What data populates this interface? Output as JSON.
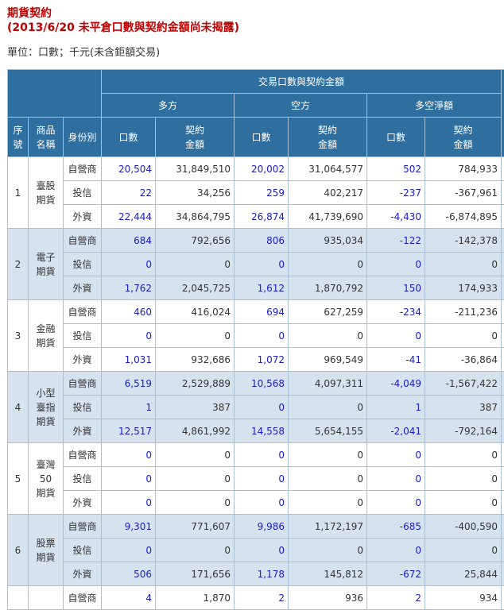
{
  "title": "期貨契約",
  "subtitle": "(2013/6/20 未平倉口數與契約金額尚未揭露)",
  "unit_text": "單位：口數；千元(未含鉅額交易)",
  "header": {
    "group": "交易口數與契約金額",
    "long": "多方",
    "short": "空方",
    "net": "多空淨額",
    "seq": [
      "序",
      "號"
    ],
    "product": [
      "商品",
      "名稱"
    ],
    "identity": "身份別",
    "lots": "口數",
    "amount": [
      "契約",
      "金額"
    ]
  },
  "groups": [
    {
      "seq": "1",
      "name": [
        "臺股",
        "期貨"
      ],
      "rows": [
        {
          "identity": "自營商",
          "long_lots": "20,504",
          "long_amt": "31,849,510",
          "short_lots": "20,002",
          "short_amt": "31,064,577",
          "net_lots": "502",
          "net_amt": "784,933"
        },
        {
          "identity": "投信",
          "long_lots": "22",
          "long_amt": "34,256",
          "short_lots": "259",
          "short_amt": "402,217",
          "net_lots": "-237",
          "net_amt": "-367,961"
        },
        {
          "identity": "外資",
          "long_lots": "22,444",
          "long_amt": "34,864,795",
          "short_lots": "26,874",
          "short_amt": "41,739,690",
          "net_lots": "-4,430",
          "net_amt": "-6,874,895"
        }
      ]
    },
    {
      "seq": "2",
      "name": [
        "電子",
        "期貨"
      ],
      "rows": [
        {
          "identity": "自營商",
          "long_lots": "684",
          "long_amt": "792,656",
          "short_lots": "806",
          "short_amt": "935,034",
          "net_lots": "-122",
          "net_amt": "-142,378"
        },
        {
          "identity": "投信",
          "long_lots": "0",
          "long_amt": "0",
          "short_lots": "0",
          "short_amt": "0",
          "net_lots": "0",
          "net_amt": "0"
        },
        {
          "identity": "外資",
          "long_lots": "1,762",
          "long_amt": "2,045,725",
          "short_lots": "1,612",
          "short_amt": "1,870,792",
          "net_lots": "150",
          "net_amt": "174,933"
        }
      ]
    },
    {
      "seq": "3",
      "name": [
        "金融",
        "期貨"
      ],
      "rows": [
        {
          "identity": "自營商",
          "long_lots": "460",
          "long_amt": "416,024",
          "short_lots": "694",
          "short_amt": "627,259",
          "net_lots": "-234",
          "net_amt": "-211,236"
        },
        {
          "identity": "投信",
          "long_lots": "0",
          "long_amt": "0",
          "short_lots": "0",
          "short_amt": "0",
          "net_lots": "0",
          "net_amt": "0"
        },
        {
          "identity": "外資",
          "long_lots": "1,031",
          "long_amt": "932,686",
          "short_lots": "1,072",
          "short_amt": "969,549",
          "net_lots": "-41",
          "net_amt": "-36,864"
        }
      ]
    },
    {
      "seq": "4",
      "name": [
        "小型",
        "臺指",
        "期貨"
      ],
      "rows": [
        {
          "identity": "自營商",
          "long_lots": "6,519",
          "long_amt": "2,529,889",
          "short_lots": "10,568",
          "short_amt": "4,097,311",
          "net_lots": "-4,049",
          "net_amt": "-1,567,422"
        },
        {
          "identity": "投信",
          "long_lots": "1",
          "long_amt": "387",
          "short_lots": "0",
          "short_amt": "0",
          "net_lots": "1",
          "net_amt": "387"
        },
        {
          "identity": "外資",
          "long_lots": "12,517",
          "long_amt": "4,861,992",
          "short_lots": "14,558",
          "short_amt": "5,654,155",
          "net_lots": "-2,041",
          "net_amt": "-792,164"
        }
      ]
    },
    {
      "seq": "5",
      "name": [
        "臺灣",
        "50",
        "期貨"
      ],
      "rows": [
        {
          "identity": "自營商",
          "long_lots": "0",
          "long_amt": "0",
          "short_lots": "0",
          "short_amt": "0",
          "net_lots": "0",
          "net_amt": "0"
        },
        {
          "identity": "投信",
          "long_lots": "0",
          "long_amt": "0",
          "short_lots": "0",
          "short_amt": "0",
          "net_lots": "0",
          "net_amt": "0"
        },
        {
          "identity": "外資",
          "long_lots": "0",
          "long_amt": "0",
          "short_lots": "0",
          "short_amt": "0",
          "net_lots": "0",
          "net_amt": "0"
        }
      ]
    },
    {
      "seq": "6",
      "name": [
        "股票",
        "期貨"
      ],
      "rows": [
        {
          "identity": "自營商",
          "long_lots": "9,301",
          "long_amt": "771,607",
          "short_lots": "9,986",
          "short_amt": "1,172,197",
          "net_lots": "-685",
          "net_amt": "-400,590"
        },
        {
          "identity": "投信",
          "long_lots": "0",
          "long_amt": "0",
          "short_lots": "0",
          "short_amt": "0",
          "net_lots": "0",
          "net_amt": "0"
        },
        {
          "identity": "外資",
          "long_lots": "506",
          "long_amt": "171,656",
          "short_lots": "1,178",
          "short_amt": "145,812",
          "net_lots": "-672",
          "net_amt": "25,844"
        }
      ]
    },
    {
      "seq": "",
      "name": [],
      "rows": [
        {
          "identity": "自營商",
          "long_lots": "4",
          "long_amt": "1,870",
          "short_lots": "2",
          "short_amt": "936",
          "net_lots": "2",
          "net_amt": "934"
        }
      ]
    }
  ]
}
